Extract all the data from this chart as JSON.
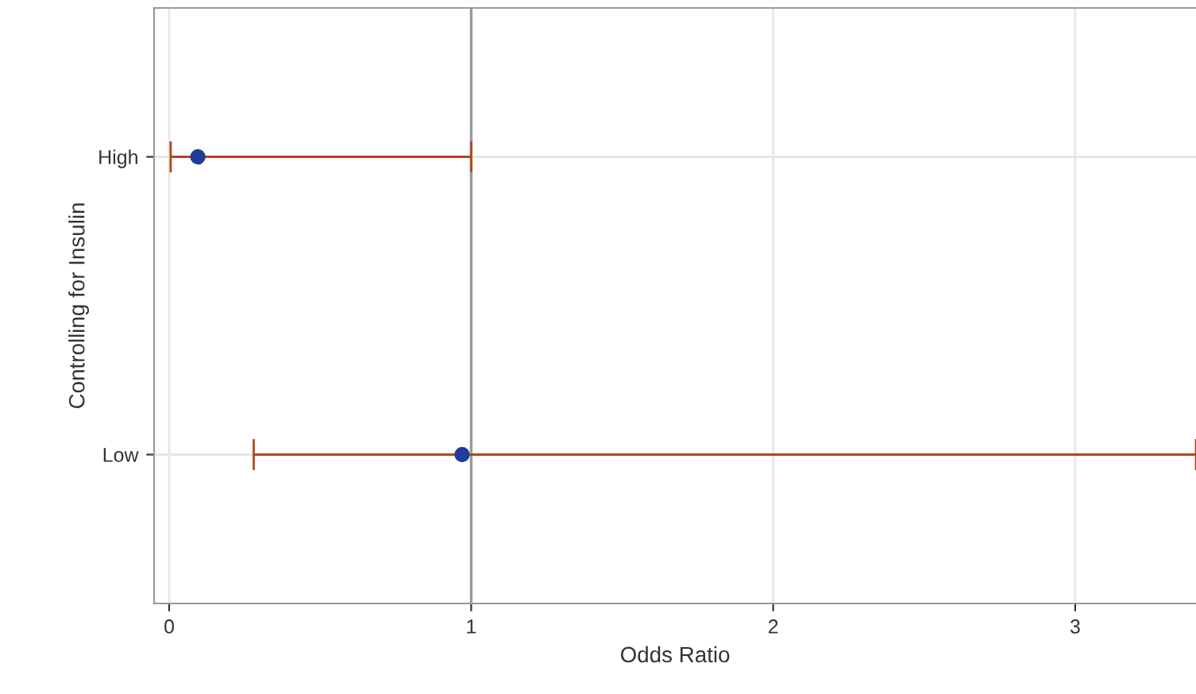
{
  "chart_data": {
    "type": "scatter",
    "orientation": "horizontal",
    "categories": [
      "High",
      "Low"
    ],
    "series": [
      {
        "color": "#1f3d99",
        "values": [
          0.095,
          0.97
        ],
        "errors": [
          [
            0.005,
            1.0
          ],
          [
            0.28,
            3.4
          ]
        ]
      }
    ],
    "xlabel": "Odds Ratio",
    "ylabel": "Controlling for Insulin",
    "xlim": [
      -0.05,
      3.4
    ],
    "xticks": [
      0,
      1,
      2,
      3
    ],
    "grid": true,
    "marker": "circle",
    "ref_lines": [
      {
        "axis": "x",
        "value": 1,
        "color": "#999999"
      }
    ]
  }
}
